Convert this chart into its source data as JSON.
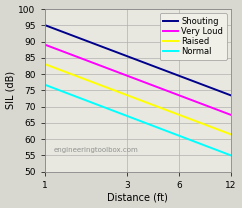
{
  "title": "",
  "xlabel": "Distance (ft)",
  "ylabel": "SIL (dB)",
  "x_ticks": [
    1,
    3,
    6,
    12
  ],
  "x_tick_labels": [
    "1",
    "3",
    "6",
    "12"
  ],
  "xlim": [
    1,
    12
  ],
  "ylim": [
    50,
    100
  ],
  "yticks": [
    50,
    55,
    60,
    65,
    70,
    75,
    80,
    85,
    90,
    95,
    100
  ],
  "watermark": "engineeringtoolbox.com",
  "lines": [
    {
      "label": "Shouting",
      "color": "#00008B",
      "x": [
        1,
        3,
        6,
        12
      ],
      "y": [
        95,
        85.3,
        80.3,
        73.0
      ]
    },
    {
      "label": "Very Loud",
      "color": "#FF00FF",
      "x": [
        1,
        3,
        6,
        12
      ],
      "y": [
        89,
        79.3,
        74.3,
        67.0
      ]
    },
    {
      "label": "Raised",
      "color": "#FFFF00",
      "x": [
        1,
        3,
        6,
        12
      ],
      "y": [
        83,
        73.3,
        68.3,
        61.0
      ]
    },
    {
      "label": "Normal",
      "color": "#00FFFF",
      "x": [
        1,
        3,
        6,
        12
      ],
      "y": [
        77,
        66.5,
        61.5,
        55.0
      ]
    }
  ],
  "figure_bg": "#d8d8d0",
  "plot_bg": "#e8e8e0",
  "grid_color": "#b0b0b0",
  "legend_fontsize": 6.0,
  "axis_fontsize": 7.0,
  "tick_fontsize": 6.5,
  "linewidth": 1.4
}
